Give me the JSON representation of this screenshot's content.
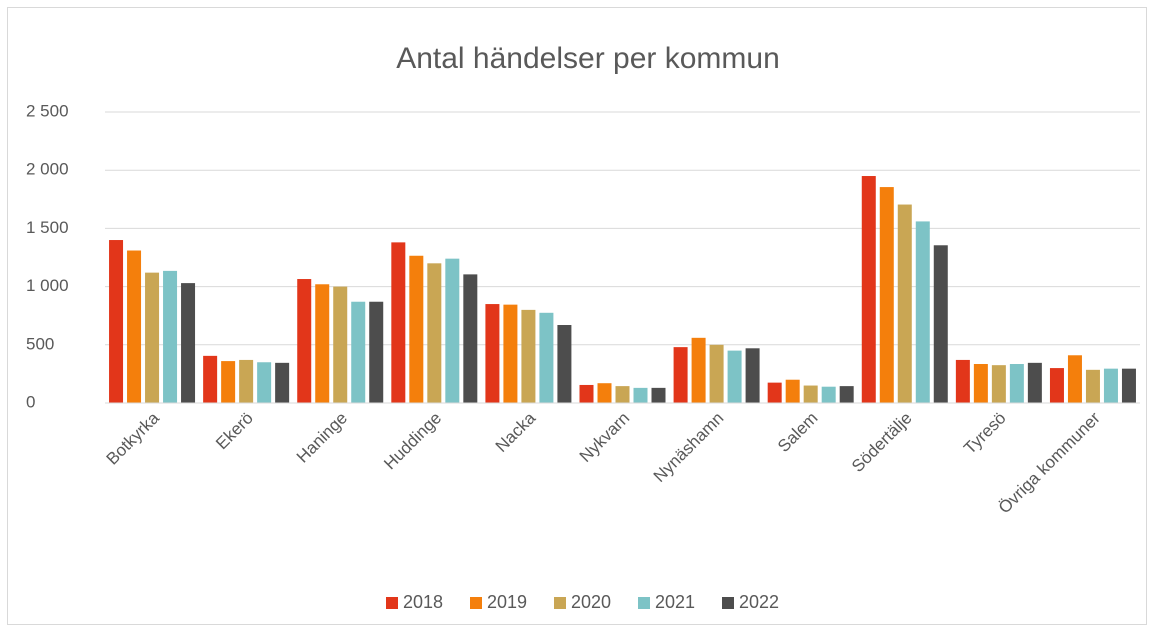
{
  "chart_data": {
    "type": "bar",
    "title": "Antal händelser per kommun",
    "categories": [
      "Botkyrka",
      "Ekerö",
      "Haninge",
      "Huddinge",
      "Nacka",
      "Nykvarn",
      "Nynäshamn",
      "Salem",
      "Södertälje",
      "Tyresö",
      "Övriga kommuner"
    ],
    "series": [
      {
        "name": "2018",
        "color": "#e2361a",
        "values": [
          1400,
          405,
          1065,
          1380,
          850,
          155,
          480,
          175,
          1950,
          370,
          300
        ]
      },
      {
        "name": "2019",
        "color": "#f47f0c",
        "values": [
          1310,
          360,
          1020,
          1265,
          845,
          170,
          560,
          200,
          1855,
          335,
          410
        ]
      },
      {
        "name": "2020",
        "color": "#c9a654",
        "values": [
          1120,
          370,
          1000,
          1200,
          800,
          145,
          500,
          150,
          1705,
          325,
          285
        ]
      },
      {
        "name": "2021",
        "color": "#7dc3c6",
        "values": [
          1135,
          350,
          870,
          1240,
          775,
          130,
          450,
          140,
          1560,
          335,
          295
        ]
      },
      {
        "name": "2022",
        "color": "#4d4d4d",
        "values": [
          1030,
          345,
          870,
          1105,
          670,
          130,
          470,
          145,
          1355,
          345,
          295
        ]
      }
    ],
    "ylim": [
      0,
      2500
    ],
    "yticks": [
      0,
      500,
      {
        "value": 1000,
        "label": "1 000"
      },
      {
        "value": 1500,
        "label": "1 500"
      },
      {
        "value": 2000,
        "label": "2 000"
      },
      {
        "value": 2500,
        "label": "2 500"
      }
    ],
    "grid": true,
    "legend": "bottom"
  }
}
